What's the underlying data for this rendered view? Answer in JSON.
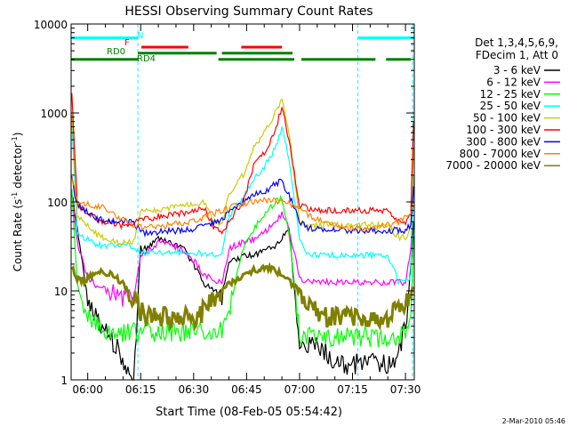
{
  "chart_data": {
    "type": "line",
    "title": "HESSI Observing Summary Count Rates",
    "xlabel": "Start Time (08-Feb-05 05:54:42)",
    "ylabel_main": "Count Rate (s",
    "ylabel_sup1": "-1",
    "ylabel_mid": " detector",
    "ylabel_sup2": "-1",
    "ylabel_end": ")",
    "yscale": "log",
    "xlim_minutes": [
      -4.7,
      92.5
    ],
    "ylim": [
      1,
      10000
    ],
    "x_ticks": [
      {
        "label": "06:00",
        "minute": 0
      },
      {
        "label": "06:15",
        "minute": 15
      },
      {
        "label": "06:30",
        "minute": 30
      },
      {
        "label": "06:45",
        "minute": 45
      },
      {
        "label": "07:00",
        "minute": 60
      },
      {
        "label": "07:15",
        "minute": 75
      },
      {
        "label": "07:30",
        "minute": 90
      }
    ],
    "y_ticks": [
      {
        "label": "1",
        "value": 1
      },
      {
        "label": "10",
        "value": 10
      },
      {
        "label": "100",
        "value": 100
      },
      {
        "label": "1000",
        "value": 1000
      },
      {
        "label": "10000",
        "value": 10000
      }
    ],
    "legend_header": [
      "Det 1,3,4,5,6,9,",
      "FDecim 1, Att 0"
    ],
    "legend_placement": "right",
    "series": [
      {
        "name": "3 - 6 keV",
        "color": "#000000",
        "x": [
          -4.5,
          -3,
          0,
          3,
          6,
          8,
          11,
          13,
          15,
          17,
          20,
          23,
          27,
          30,
          33,
          36,
          38,
          40,
          44,
          47,
          50,
          53,
          55,
          57,
          60,
          62,
          64,
          67,
          70,
          75,
          80,
          85,
          88,
          90,
          91.5,
          92.3
        ],
        "y": [
          130,
          50,
          8,
          5,
          3,
          2.5,
          1.3,
          1,
          30,
          30,
          38,
          35,
          30,
          20,
          12,
          10,
          8,
          20,
          25,
          25,
          28,
          32,
          40,
          50,
          2.5,
          2.5,
          2.5,
          2.2,
          1.5,
          1.5,
          1.5,
          1.5,
          2,
          4,
          18,
          60
        ]
      },
      {
        "name": "6 - 12 keV",
        "color": "#ff00ff",
        "x": [
          -4.5,
          -3,
          0,
          3,
          6,
          8,
          11,
          13,
          15,
          17,
          20,
          23,
          27,
          30,
          33,
          36,
          38,
          40,
          44,
          47,
          50,
          53,
          55,
          57,
          60,
          62,
          64,
          67,
          70,
          75,
          80,
          85,
          88,
          90,
          91.5,
          92.3
        ],
        "y": [
          130,
          35,
          14,
          11,
          10,
          9,
          8.5,
          8.5,
          25,
          28,
          35,
          34,
          28,
          22,
          15,
          13,
          12,
          30,
          35,
          38,
          45,
          60,
          75,
          50,
          14,
          13,
          13,
          12.5,
          12.5,
          12.5,
          12.5,
          12.5,
          12.5,
          12,
          30,
          150
        ]
      },
      {
        "name": "12 - 25 keV",
        "color": "#00ff00",
        "x": [
          -4.5,
          -3,
          0,
          3,
          6,
          8,
          11,
          13,
          15,
          17,
          20,
          23,
          27,
          30,
          33,
          36,
          38,
          40,
          44,
          47,
          50,
          53,
          55,
          57,
          60,
          62,
          64,
          67,
          70,
          75,
          80,
          85,
          88,
          90,
          91.5,
          92.3
        ],
        "y": [
          150,
          12,
          5,
          4,
          3.5,
          3.5,
          3.5,
          3.5,
          3.5,
          3.5,
          3.5,
          3.5,
          3.5,
          3.5,
          3.5,
          3.5,
          3.5,
          6,
          30,
          50,
          70,
          100,
          110,
          45,
          3,
          3,
          3,
          3,
          3,
          3,
          3,
          3,
          3,
          3,
          5,
          40
        ]
      },
      {
        "name": "25 - 50 keV",
        "color": "#00ffff",
        "x": [
          -4.5,
          -3,
          0,
          3,
          6,
          8,
          11,
          13,
          15,
          17,
          20,
          23,
          27,
          30,
          33,
          36,
          38,
          40,
          44,
          47,
          50,
          53,
          55,
          57,
          60,
          62,
          64,
          67,
          70,
          75,
          80,
          85,
          88,
          90,
          91.5,
          92.3
        ],
        "y": [
          800,
          45,
          38,
          33,
          32,
          32,
          32,
          32,
          27,
          27,
          27,
          27,
          27,
          27,
          26,
          26,
          26,
          70,
          110,
          180,
          250,
          400,
          650,
          320,
          40,
          27,
          26,
          25,
          25,
          25,
          25,
          25,
          13,
          13,
          15,
          200
        ]
      },
      {
        "name": "50 - 100 keV",
        "color": "#cccc00",
        "x": [
          -4.5,
          -3,
          0,
          3,
          6,
          8,
          11,
          13,
          15,
          17,
          20,
          23,
          27,
          30,
          33,
          36,
          38,
          40,
          44,
          47,
          50,
          53,
          55,
          57,
          60,
          62,
          64,
          67,
          70,
          75,
          80,
          85,
          88,
          90,
          91.5,
          92.3
        ],
        "y": [
          1000,
          70,
          55,
          42,
          37,
          35,
          35,
          35,
          80,
          80,
          82,
          85,
          90,
          95,
          100,
          60,
          55,
          120,
          200,
          400,
          600,
          1000,
          1400,
          600,
          60,
          55,
          55,
          55,
          55,
          55,
          55,
          55,
          40,
          40,
          50,
          400
        ]
      },
      {
        "name": "100 - 300 keV",
        "color": "#ff0000",
        "x": [
          -4.5,
          -3,
          0,
          3,
          6,
          8,
          11,
          13,
          15,
          17,
          20,
          23,
          27,
          30,
          33,
          36,
          38,
          40,
          44,
          47,
          50,
          53,
          55,
          57,
          60,
          62,
          64,
          67,
          70,
          75,
          80,
          85,
          88,
          90,
          91.5,
          92.3
        ],
        "y": [
          1800,
          95,
          75,
          62,
          58,
          55,
          55,
          55,
          65,
          65,
          68,
          70,
          75,
          80,
          85,
          50,
          45,
          60,
          100,
          250,
          350,
          600,
          1200,
          500,
          90,
          85,
          80,
          80,
          80,
          80,
          80,
          80,
          60,
          60,
          70,
          800
        ]
      },
      {
        "name": "300 - 800 keV",
        "color": "#0000ff",
        "x": [
          -4.5,
          -3,
          0,
          3,
          6,
          8,
          11,
          13,
          15,
          17,
          20,
          23,
          27,
          30,
          33,
          36,
          38,
          40,
          44,
          47,
          50,
          53,
          55,
          57,
          60,
          62,
          64,
          67,
          70,
          75,
          80,
          85,
          88,
          90,
          91.5,
          92.3
        ],
        "y": [
          180,
          95,
          75,
          65,
          62,
          60,
          60,
          60,
          45,
          45,
          46,
          47,
          48,
          50,
          55,
          60,
          65,
          75,
          100,
          120,
          130,
          160,
          170,
          120,
          60,
          52,
          50,
          48,
          48,
          48,
          48,
          48,
          48,
          48,
          55,
          150
        ]
      },
      {
        "name": "800 - 7000 keV",
        "color": "#ff8000",
        "x": [
          -4.5,
          -3,
          0,
          3,
          6,
          8,
          11,
          13,
          15,
          17,
          20,
          23,
          27,
          30,
          33,
          36,
          38,
          40,
          44,
          47,
          50,
          53,
          55,
          57,
          60,
          62,
          64,
          67,
          70,
          75,
          80,
          85,
          88,
          90,
          91.5,
          92.3
        ],
        "y": [
          200,
          100,
          95,
          90,
          80,
          70,
          60,
          55,
          52,
          52,
          53,
          55,
          58,
          62,
          68,
          75,
          80,
          85,
          95,
          100,
          105,
          105,
          100,
          95,
          85,
          75,
          65,
          58,
          53,
          50,
          52,
          55,
          60,
          68,
          72,
          100
        ]
      },
      {
        "name": "7000 - 20000 keV",
        "color": "#808000",
        "x": [
          -4.5,
          -3,
          -1,
          0,
          3,
          6,
          8,
          11,
          13,
          15,
          17,
          20,
          23,
          27,
          30,
          33,
          36,
          38,
          40,
          44,
          47,
          50,
          53,
          55,
          57,
          60,
          62,
          64,
          67,
          70,
          75,
          80,
          85,
          88,
          90,
          91.5,
          92.3
        ],
        "y": [
          18,
          14,
          13,
          14,
          16,
          16,
          14,
          11,
          8,
          6,
          5,
          5,
          5,
          5,
          5,
          6,
          8,
          10,
          12,
          15,
          17,
          18,
          17,
          15,
          13,
          10,
          8,
          6,
          5,
          5,
          5,
          5,
          5,
          6,
          7,
          9,
          11
        ]
      }
    ],
    "annotations": [
      {
        "text": "N",
        "color": "#00ffff"
      },
      {
        "text": "F",
        "color": "#ff0000"
      },
      {
        "text": "RD0",
        "color": "#008000"
      },
      {
        "text": "RD4",
        "color": "#008000"
      }
    ],
    "flag_bars": {
      "N": {
        "color": "#00ffff",
        "y": 7000,
        "intervals": [
          [
            -4.7,
            14.2
          ],
          [
            76.5,
            92.5
          ]
        ]
      },
      "F": {
        "color": "#ff0000",
        "y": 5500,
        "intervals": [
          [
            15.2,
            28.5
          ],
          [
            43.5,
            55
          ]
        ]
      },
      "RD0": {
        "color": "#008000",
        "y": 4000,
        "intervals": [
          [
            -4.7,
            6
          ]
        ]
      },
      "RD4": {
        "color": "#008000",
        "y": 4700,
        "intervals": [
          [
            14.2,
            36.5
          ],
          [
            38,
            58
          ]
        ]
      },
      "RD_low": {
        "color": "#008000",
        "y": 4000,
        "intervals": [
          [
            6,
            14.2
          ],
          [
            37,
            58.5
          ],
          [
            60.5,
            81.5
          ],
          [
            84.5,
            91.5
          ]
        ]
      }
    },
    "vlines_minutes": [
      14.2,
      76.5,
      92.0
    ],
    "vline_color": "#00ffff",
    "footer_date": "2-Mar-2010 05:46"
  }
}
